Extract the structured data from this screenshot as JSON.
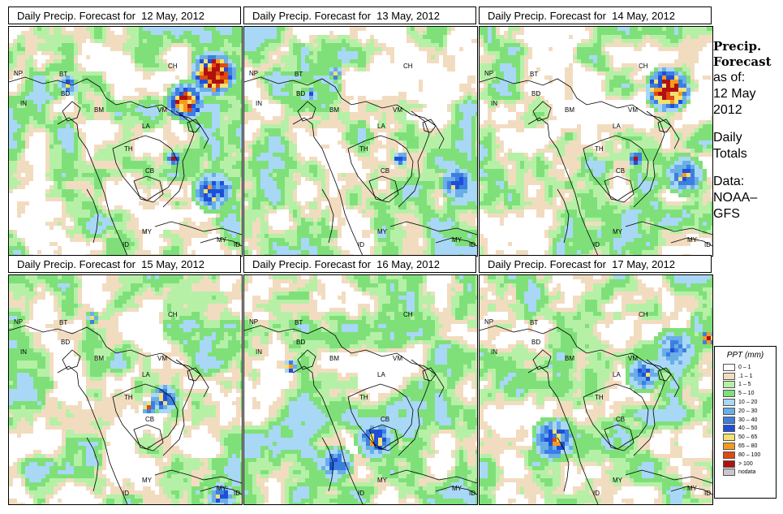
{
  "panels": [
    {
      "title": "Daily Precip. Forecast for  12 May, 2012",
      "day": 0
    },
    {
      "title": "Daily Precip. Forecast for  13 May, 2012",
      "day": 1
    },
    {
      "title": "Daily Precip. Forecast for  14 May, 2012",
      "day": 2
    },
    {
      "title": "Daily Precip. Forecast for  15 May, 2012",
      "day": 3
    },
    {
      "title": "Daily Precip. Forecast for  16 May, 2012",
      "day": 4
    },
    {
      "title": "Daily Precip. Forecast for  17 May, 2012",
      "day": 5
    }
  ],
  "country_labels": [
    "NP",
    "BT",
    "BD",
    "IN",
    "BM",
    "CH",
    "VM",
    "LA",
    "TH",
    "CB",
    "MY",
    "ID",
    "MY",
    "ID"
  ],
  "side": {
    "heading_1": "Precip.",
    "heading_2": "Forecast",
    "asof": "as of:",
    "date_1": "12 May",
    "date_2": "2012",
    "totals_1": "Daily",
    "totals_2": "Totals",
    "data_1": "Data:",
    "data_2": "NOAA–",
    "data_3": "GFS"
  },
  "legend": {
    "title": "PPT (mm)",
    "items": [
      {
        "label": "0 – 1",
        "color": "#ffffff"
      },
      {
        "label": ".1 – 1",
        "color": "#f2dcc0"
      },
      {
        "label": "1 – 5",
        "color": "#b6f0a6"
      },
      {
        "label": "5 – 10",
        "color": "#7fe07a"
      },
      {
        "label": "10 – 20",
        "color": "#a8d8f5"
      },
      {
        "label": "20 – 30",
        "color": "#6aaee8"
      },
      {
        "label": "30 – 40",
        "color": "#3c7fe0"
      },
      {
        "label": "40 – 50",
        "color": "#1f4fd8"
      },
      {
        "label": "50 – 65",
        "color": "#f5e070"
      },
      {
        "label": "65 – 80",
        "color": "#f59a20"
      },
      {
        "label": "80 – 100",
        "color": "#e04a10"
      },
      {
        "label": "> 100",
        "color": "#b01010"
      },
      {
        "label": "nodata",
        "color": "#c8c8c8"
      }
    ]
  }
}
